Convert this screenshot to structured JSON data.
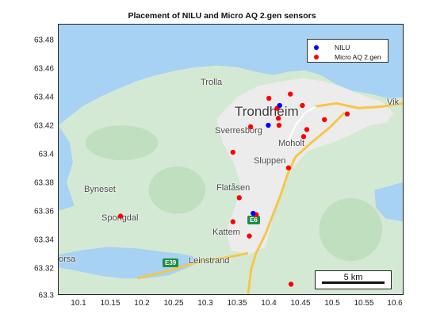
{
  "title": "Placement of NILU and Micro AQ 2.gen sensors",
  "axes": {
    "x_ticks": [
      "10.1",
      "10.15",
      "10.2",
      "10.25",
      "10.3",
      "10.35",
      "10.4",
      "10.45",
      "10.5",
      "10.55",
      "10.6"
    ],
    "y_ticks": [
      "63.48",
      "63.46",
      "63.44",
      "63.42",
      "63.4",
      "63.38",
      "63.36",
      "63.34",
      "63.32",
      "63.3"
    ],
    "xlim": [
      10.065,
      10.61
    ],
    "ylim": [
      63.3,
      63.49
    ]
  },
  "places": {
    "trolla": "Trolla",
    "trondheim": "Trondheim",
    "vik": "Vik",
    "sverresborg": "Sverresborg",
    "moholt": "Moholt",
    "sluppen": "Sluppen",
    "byneset": "Byneset",
    "spongdal": "Spongdal",
    "flatasen": "Flatåsen",
    "kattem": "Kattem",
    "leinstrand": "Leinstrand",
    "orsa": "orsa"
  },
  "roads": {
    "e6": "E6",
    "e39": "E39"
  },
  "legend": {
    "nilu": "NILU",
    "microaq": "Micro AQ 2.gen"
  },
  "colors": {
    "nilu": "#0000ff",
    "microaq": "#ff0000",
    "water": "#a9d3f5",
    "land": "#d6ead7"
  },
  "scalebar": {
    "label": "5 km"
  },
  "chart_data": {
    "type": "scatter",
    "title": "Placement of NILU and Micro AQ 2.gen sensors",
    "xlim": [
      10.065,
      10.61
    ],
    "ylim": [
      63.3,
      63.49
    ],
    "series": [
      {
        "name": "NILU",
        "color": "#0000ff",
        "points": [
          [
            10.415,
            63.433
          ],
          [
            10.397,
            63.419
          ],
          [
            10.373,
            63.357
          ]
        ]
      },
      {
        "name": "Micro AQ 2.gen",
        "color": "#ff0000",
        "points": [
          [
            10.398,
            63.438
          ],
          [
            10.432,
            63.441
          ],
          [
            10.411,
            63.431
          ],
          [
            10.451,
            63.433
          ],
          [
            10.413,
            63.424
          ],
          [
            10.414,
            63.419
          ],
          [
            10.369,
            63.418
          ],
          [
            10.458,
            63.416
          ],
          [
            10.453,
            63.411
          ],
          [
            10.486,
            63.423
          ],
          [
            10.522,
            63.427
          ],
          [
            10.341,
            63.4
          ],
          [
            10.429,
            63.389
          ],
          [
            10.351,
            63.368
          ],
          [
            10.163,
            63.355
          ],
          [
            10.378,
            63.356
          ],
          [
            10.341,
            63.351
          ],
          [
            10.367,
            63.341
          ],
          [
            10.433,
            63.307
          ]
        ]
      }
    ]
  }
}
